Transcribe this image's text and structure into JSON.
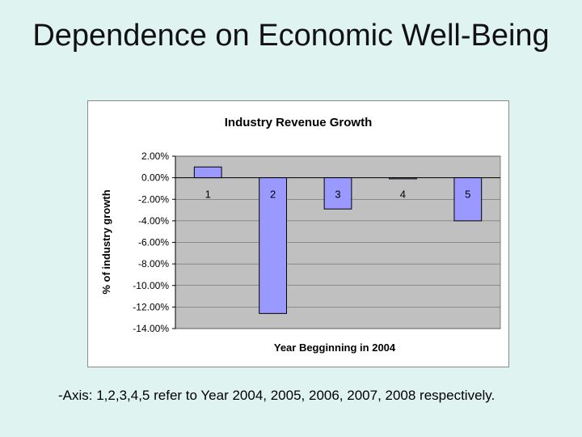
{
  "slide": {
    "title": "Dependence on Economic Well-Being",
    "caption": "-Axis: 1,2,3,4,5 refer to Year 2004, 2005, 2006, 2007, 2008 respectively."
  },
  "chart_data": {
    "type": "bar",
    "title": "Industry Revenue Growth",
    "xlabel": "Year Begginning in 2004",
    "ylabel": "% of industry growth",
    "categories": [
      "1",
      "2",
      "3",
      "4",
      "5"
    ],
    "series": [
      {
        "values": [
          1.0,
          -12.6,
          -2.9,
          -0.1,
          -4.0
        ]
      }
    ],
    "ylim": [
      -14,
      2
    ],
    "yticks": [
      "2.00%",
      "0.00%",
      "-2.00%",
      "-4.00%",
      "-6.00%",
      "-8.00%",
      "-10.00%",
      "-12.00%",
      "-14.00%"
    ],
    "ytick_values": [
      2,
      0,
      -2,
      -4,
      -6,
      -8,
      -10,
      -12,
      -14
    ],
    "grid": true,
    "colors": {
      "bar_fill": "#9999ff",
      "bar_stroke": "#000000",
      "plot_bg": "#c0c0c0",
      "gridline": "#000000"
    }
  }
}
